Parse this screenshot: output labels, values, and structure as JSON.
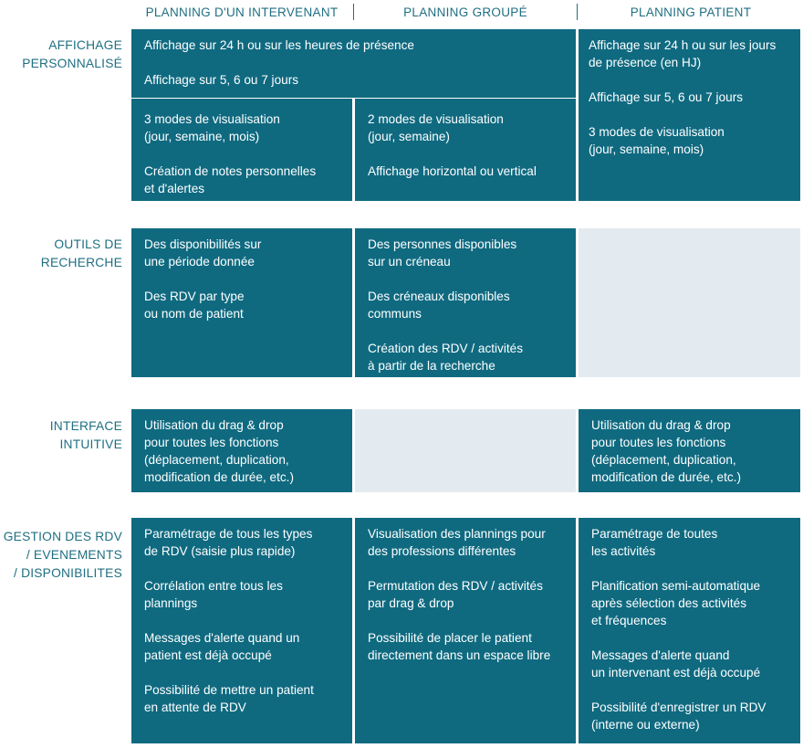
{
  "columns": [
    "Planning d'un intervenant",
    "Planning groupé",
    "Planning patient"
  ],
  "rows": {
    "affichage": {
      "label": "Affichage\npersonnalisé",
      "combined": [
        "Affichage sur 24 h ou sur les heures de présence",
        "Affichage sur 5, 6 ou 7 jours"
      ],
      "intervenant": [
        "3 modes de visualisation\n(jour, semaine, mois)",
        "Création de notes personnelles\net d'alertes"
      ],
      "groupe": [
        "2 modes de visualisation\n(jour, semaine)",
        "Affichage horizontal ou vertical"
      ],
      "patient": [
        "Affichage sur 24 h ou sur les jours\nde présence (en HJ)",
        "Affichage sur 5, 6 ou 7 jours",
        "3 modes de visualisation\n(jour, semaine, mois)"
      ]
    },
    "outils": {
      "label": "Outils de\nrecherche",
      "intervenant": [
        "Des disponibilités sur\nune période donnée",
        "Des RDV par type\nou nom de patient"
      ],
      "groupe": [
        "Des personnes disponibles\nsur un créneau",
        "Des créneaux disponibles\ncommuns",
        "Création des RDV / activités\nà partir de la recherche"
      ]
    },
    "interface": {
      "label": "Interface\nintuitive",
      "intervenant": [
        "Utilisation du drag & drop\npour toutes les fonctions\n(déplacement, duplication,\nmodification de durée, etc.)"
      ],
      "patient": [
        "Utilisation du drag & drop\npour toutes les fonctions\n(déplacement, duplication,\nmodification de durée, etc.)"
      ]
    },
    "gestion": {
      "label": "Gestion des RDV\n/ evenements\n/ disponibilites",
      "intervenant": [
        "Paramétrage de tous les types\nde RDV (saisie plus rapide)",
        "Corrélation entre tous les\nplannings",
        "Messages d'alerte quand un\npatient est déjà occupé",
        "Possibilité de mettre un patient\nen attente de RDV"
      ],
      "groupe": [
        "Visualisation des plannings pour\ndes professions différentes",
        "Permutation des RDV / activités\npar drag & drop",
        "Possibilité de placer le patient\ndirectement dans un espace libre"
      ],
      "patient": [
        "Paramétrage de toutes\nles activités",
        "Planification semi-automatique\naprès sélection des activités\net fréquences",
        "Messages d'alerte quand\nun intervenant est déjà occupé",
        "Possibilité d'enregistrer un RDV\n(interne ou externe)"
      ]
    }
  },
  "colors": {
    "cell": "#0f6a80",
    "empty": "#e4ebf0",
    "heading": "#1f6f82"
  }
}
